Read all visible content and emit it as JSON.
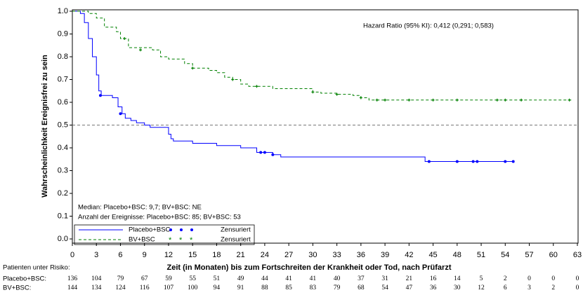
{
  "chart_data": {
    "type": "step",
    "y_label": "Wahrscheinlichkeit Ereignisfrei zu sein",
    "x_label": "Zeit (in Monaten) bis zum Fortschreiten der Krankheit oder Tod, nach Prüfarzt",
    "annotation": "Hazard Ratio (95% KI): 0,412 (0,291; 0,583)",
    "median_text": "Median: Placebo+BSC: 9,7; BV+BSC: NE",
    "events_text": "Anzahl der Ereignisse: Placebo+BSC: 85; BV+BSC: 53",
    "censored_label": "Zensuriert",
    "reference_line": 0.5,
    "xlim": [
      0,
      63
    ],
    "ylim": [
      0,
      1
    ],
    "xticks": [
      0,
      3,
      6,
      9,
      12,
      15,
      18,
      21,
      24,
      27,
      30,
      33,
      36,
      39,
      42,
      45,
      48,
      51,
      54,
      57,
      60,
      63
    ],
    "yticks": [
      {
        "value": 0,
        "label": "0.0"
      },
      0.1,
      0.2,
      0.3,
      0.4,
      0.5,
      0.6,
      0.7,
      0.8,
      0.9,
      {
        "value": 1,
        "label": "1.0"
      }
    ],
    "series": [
      {
        "name": "Placebo+BSC",
        "color": "#0000ff",
        "x": [
          0,
          1,
          1.5,
          2,
          2.5,
          3,
          3.3,
          3.6,
          5,
          5.7,
          6.2,
          6.6,
          7.3,
          8,
          9,
          9.7,
          12,
          12.3,
          12.6,
          15,
          18,
          21,
          23,
          25,
          26,
          43,
          44,
          55
        ],
        "values": [
          1,
          0.99,
          0.95,
          0.88,
          0.8,
          0.72,
          0.65,
          0.63,
          0.62,
          0.58,
          0.55,
          0.53,
          0.52,
          0.51,
          0.5,
          0.49,
          0.46,
          0.44,
          0.43,
          0.42,
          0.41,
          0.4,
          0.38,
          0.37,
          0.36,
          0.36,
          0.34,
          0.34
        ],
        "censored_x": [
          3.5,
          6,
          23.5,
          24,
          25,
          44.5,
          48,
          50,
          50.5,
          54,
          55
        ],
        "censored_values": [
          0.63,
          0.55,
          0.38,
          0.38,
          0.37,
          0.34,
          0.34,
          0.34,
          0.34,
          0.34,
          0.34
        ]
      },
      {
        "name": "BV+BSC",
        "color": "#008000",
        "x": [
          0,
          2,
          3,
          4,
          5.5,
          6,
          7,
          10,
          11,
          12,
          14,
          15,
          17,
          18,
          19,
          20,
          21,
          22,
          25,
          30,
          31,
          33,
          35,
          36,
          37,
          62.5
        ],
        "values": [
          1,
          0.99,
          0.97,
          0.93,
          0.91,
          0.88,
          0.84,
          0.83,
          0.8,
          0.79,
          0.77,
          0.75,
          0.74,
          0.73,
          0.71,
          0.7,
          0.68,
          0.67,
          0.66,
          0.645,
          0.64,
          0.635,
          0.63,
          0.62,
          0.61,
          0.61
        ],
        "censored_x": [
          6.5,
          8.5,
          15,
          20,
          23,
          30,
          33,
          36,
          38,
          39,
          42,
          45,
          48,
          53,
          54,
          56,
          62
        ],
        "censored_values": [
          0.88,
          0.83,
          0.75,
          0.7,
          0.67,
          0.645,
          0.635,
          0.62,
          0.61,
          0.61,
          0.61,
          0.61,
          0.61,
          0.61,
          0.61,
          0.61,
          0.61
        ]
      }
    ],
    "risk_table": {
      "title": "Patienten unter Risiko:",
      "rows": [
        {
          "label": "Placebo+BSC:",
          "values": [
            136,
            104,
            79,
            67,
            59,
            55,
            51,
            49,
            44,
            41,
            41,
            40,
            37,
            31,
            21,
            16,
            14,
            5,
            2,
            0,
            0,
            0
          ]
        },
        {
          "label": "BV+BSC:",
          "values": [
            144,
            134,
            124,
            116,
            107,
            100,
            94,
            91,
            88,
            85,
            83,
            79,
            68,
            54,
            47,
            36,
            30,
            12,
            6,
            3,
            2,
            0
          ]
        }
      ]
    }
  }
}
